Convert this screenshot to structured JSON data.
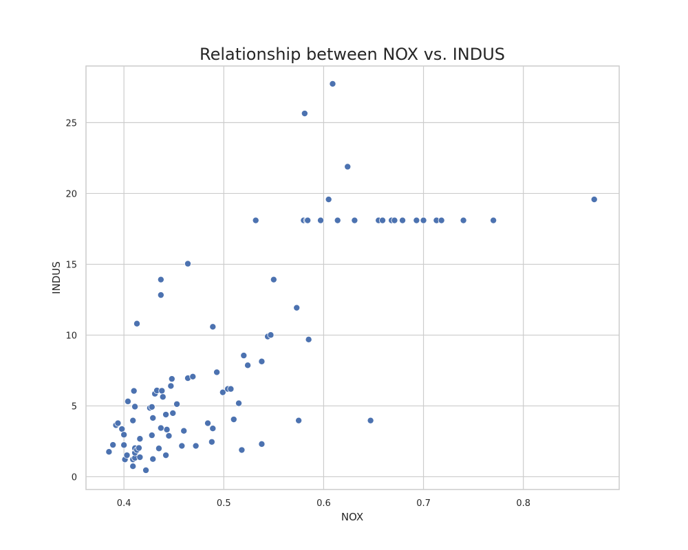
{
  "chart_data": {
    "type": "scatter",
    "title": "Relationship between NOX vs. INDUS",
    "xlabel": "NOX",
    "ylabel": "INDUS",
    "xlim": [
      0.362,
      0.896
    ],
    "ylim": [
      -0.9,
      29.0
    ],
    "xticks": [
      0.4,
      0.5,
      0.6,
      0.7,
      0.8
    ],
    "xtick_labels": [
      "0.4",
      "0.5",
      "0.6",
      "0.7",
      "0.8"
    ],
    "yticks": [
      0,
      5,
      10,
      15,
      20,
      25
    ],
    "ytick_labels": [
      "0",
      "5",
      "10",
      "15",
      "20",
      "25"
    ],
    "grid": true,
    "marker_color": "#4c72b0",
    "series": [
      {
        "name": "NOX vs INDUS",
        "points": [
          [
            0.385,
            1.76
          ],
          [
            0.389,
            2.25
          ],
          [
            0.392,
            3.64
          ],
          [
            0.394,
            3.78
          ],
          [
            0.398,
            3.37
          ],
          [
            0.4,
            2.97
          ],
          [
            0.4,
            2.24
          ],
          [
            0.401,
            1.22
          ],
          [
            0.403,
            1.52
          ],
          [
            0.404,
            5.32
          ],
          [
            0.409,
            0.74
          ],
          [
            0.409,
            1.22
          ],
          [
            0.41,
            6.06
          ],
          [
            0.409,
            3.97
          ],
          [
            0.411,
            4.95
          ],
          [
            0.411,
            1.33
          ],
          [
            0.411,
            1.69
          ],
          [
            0.411,
            2.02
          ],
          [
            0.413,
            1.89
          ],
          [
            0.413,
            10.81
          ],
          [
            0.415,
            2.03
          ],
          [
            0.416,
            1.38
          ],
          [
            0.416,
            2.68
          ],
          [
            0.422,
            0.46
          ],
          [
            0.426,
            4.86
          ],
          [
            0.428,
            4.93
          ],
          [
            0.428,
            2.93
          ],
          [
            0.429,
            4.15
          ],
          [
            0.429,
            1.25
          ],
          [
            0.431,
            5.86
          ],
          [
            0.433,
            6.09
          ],
          [
            0.435,
            2.0
          ],
          [
            0.437,
            3.44
          ],
          [
            0.437,
            13.92
          ],
          [
            0.437,
            12.83
          ],
          [
            0.438,
            6.07
          ],
          [
            0.439,
            5.64
          ],
          [
            0.442,
            4.39
          ],
          [
            0.442,
            1.52
          ],
          [
            0.443,
            3.33
          ],
          [
            0.445,
            2.89
          ],
          [
            0.447,
            6.41
          ],
          [
            0.448,
            6.91
          ],
          [
            0.449,
            4.49
          ],
          [
            0.453,
            5.13
          ],
          [
            0.458,
            2.18
          ],
          [
            0.46,
            3.24
          ],
          [
            0.464,
            6.96
          ],
          [
            0.464,
            15.04
          ],
          [
            0.469,
            7.07
          ],
          [
            0.472,
            2.18
          ],
          [
            0.484,
            3.78
          ],
          [
            0.488,
            2.46
          ],
          [
            0.489,
            3.41
          ],
          [
            0.489,
            10.59
          ],
          [
            0.493,
            7.38
          ],
          [
            0.499,
            5.96
          ],
          [
            0.504,
            6.2
          ],
          [
            0.507,
            6.2
          ],
          [
            0.51,
            4.05
          ],
          [
            0.515,
            5.19
          ],
          [
            0.518,
            1.89
          ],
          [
            0.52,
            8.56
          ],
          [
            0.524,
            7.87
          ],
          [
            0.532,
            18.1
          ],
          [
            0.538,
            8.14
          ],
          [
            0.538,
            2.31
          ],
          [
            0.544,
            9.9
          ],
          [
            0.547,
            10.01
          ],
          [
            0.55,
            13.92
          ],
          [
            0.573,
            11.93
          ],
          [
            0.575,
            3.97
          ],
          [
            0.58,
            18.1
          ],
          [
            0.581,
            25.65
          ],
          [
            0.583,
            18.1
          ],
          [
            0.584,
            18.1
          ],
          [
            0.585,
            9.69
          ],
          [
            0.597,
            18.1
          ],
          [
            0.605,
            19.58
          ],
          [
            0.609,
            27.74
          ],
          [
            0.614,
            18.1
          ],
          [
            0.624,
            21.89
          ],
          [
            0.631,
            18.1
          ],
          [
            0.647,
            3.97
          ],
          [
            0.655,
            18.1
          ],
          [
            0.659,
            18.1
          ],
          [
            0.668,
            18.1
          ],
          [
            0.671,
            18.1
          ],
          [
            0.679,
            18.1
          ],
          [
            0.693,
            18.1
          ],
          [
            0.7,
            18.1
          ],
          [
            0.713,
            18.1
          ],
          [
            0.718,
            18.1
          ],
          [
            0.74,
            18.1
          ],
          [
            0.77,
            18.1
          ],
          [
            0.871,
            19.58
          ]
        ]
      }
    ]
  }
}
